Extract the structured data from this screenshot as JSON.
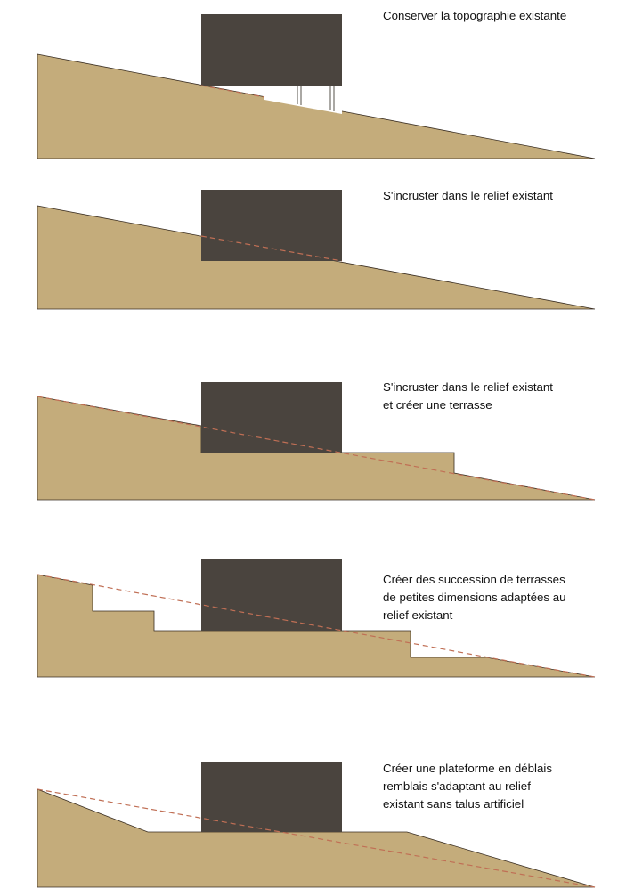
{
  "colors": {
    "terrain": "#C4AC7B",
    "house": "#4A443E",
    "dashed_line": "#C06F55",
    "background": "#FFFFFF"
  },
  "sections": [
    {
      "id": "topography",
      "caption_lines": [
        "Conserver la topographie existante"
      ]
    },
    {
      "id": "embed",
      "caption_lines": [
        "S'incruster dans le relief existant"
      ]
    },
    {
      "id": "embed-terrace",
      "caption_lines": [
        "S'incruster dans le relief existant",
        "et créer une terrasse"
      ]
    },
    {
      "id": "terraces",
      "caption_lines": [
        "Créer des succession de terrasses",
        "de petites dimensions adaptées au",
        "relief existant"
      ]
    },
    {
      "id": "platform",
      "caption_lines": [
        "Créer une plateforme en déblais",
        "remblais s'adaptant au relief",
        "existant sans talus artificiel"
      ]
    }
  ]
}
